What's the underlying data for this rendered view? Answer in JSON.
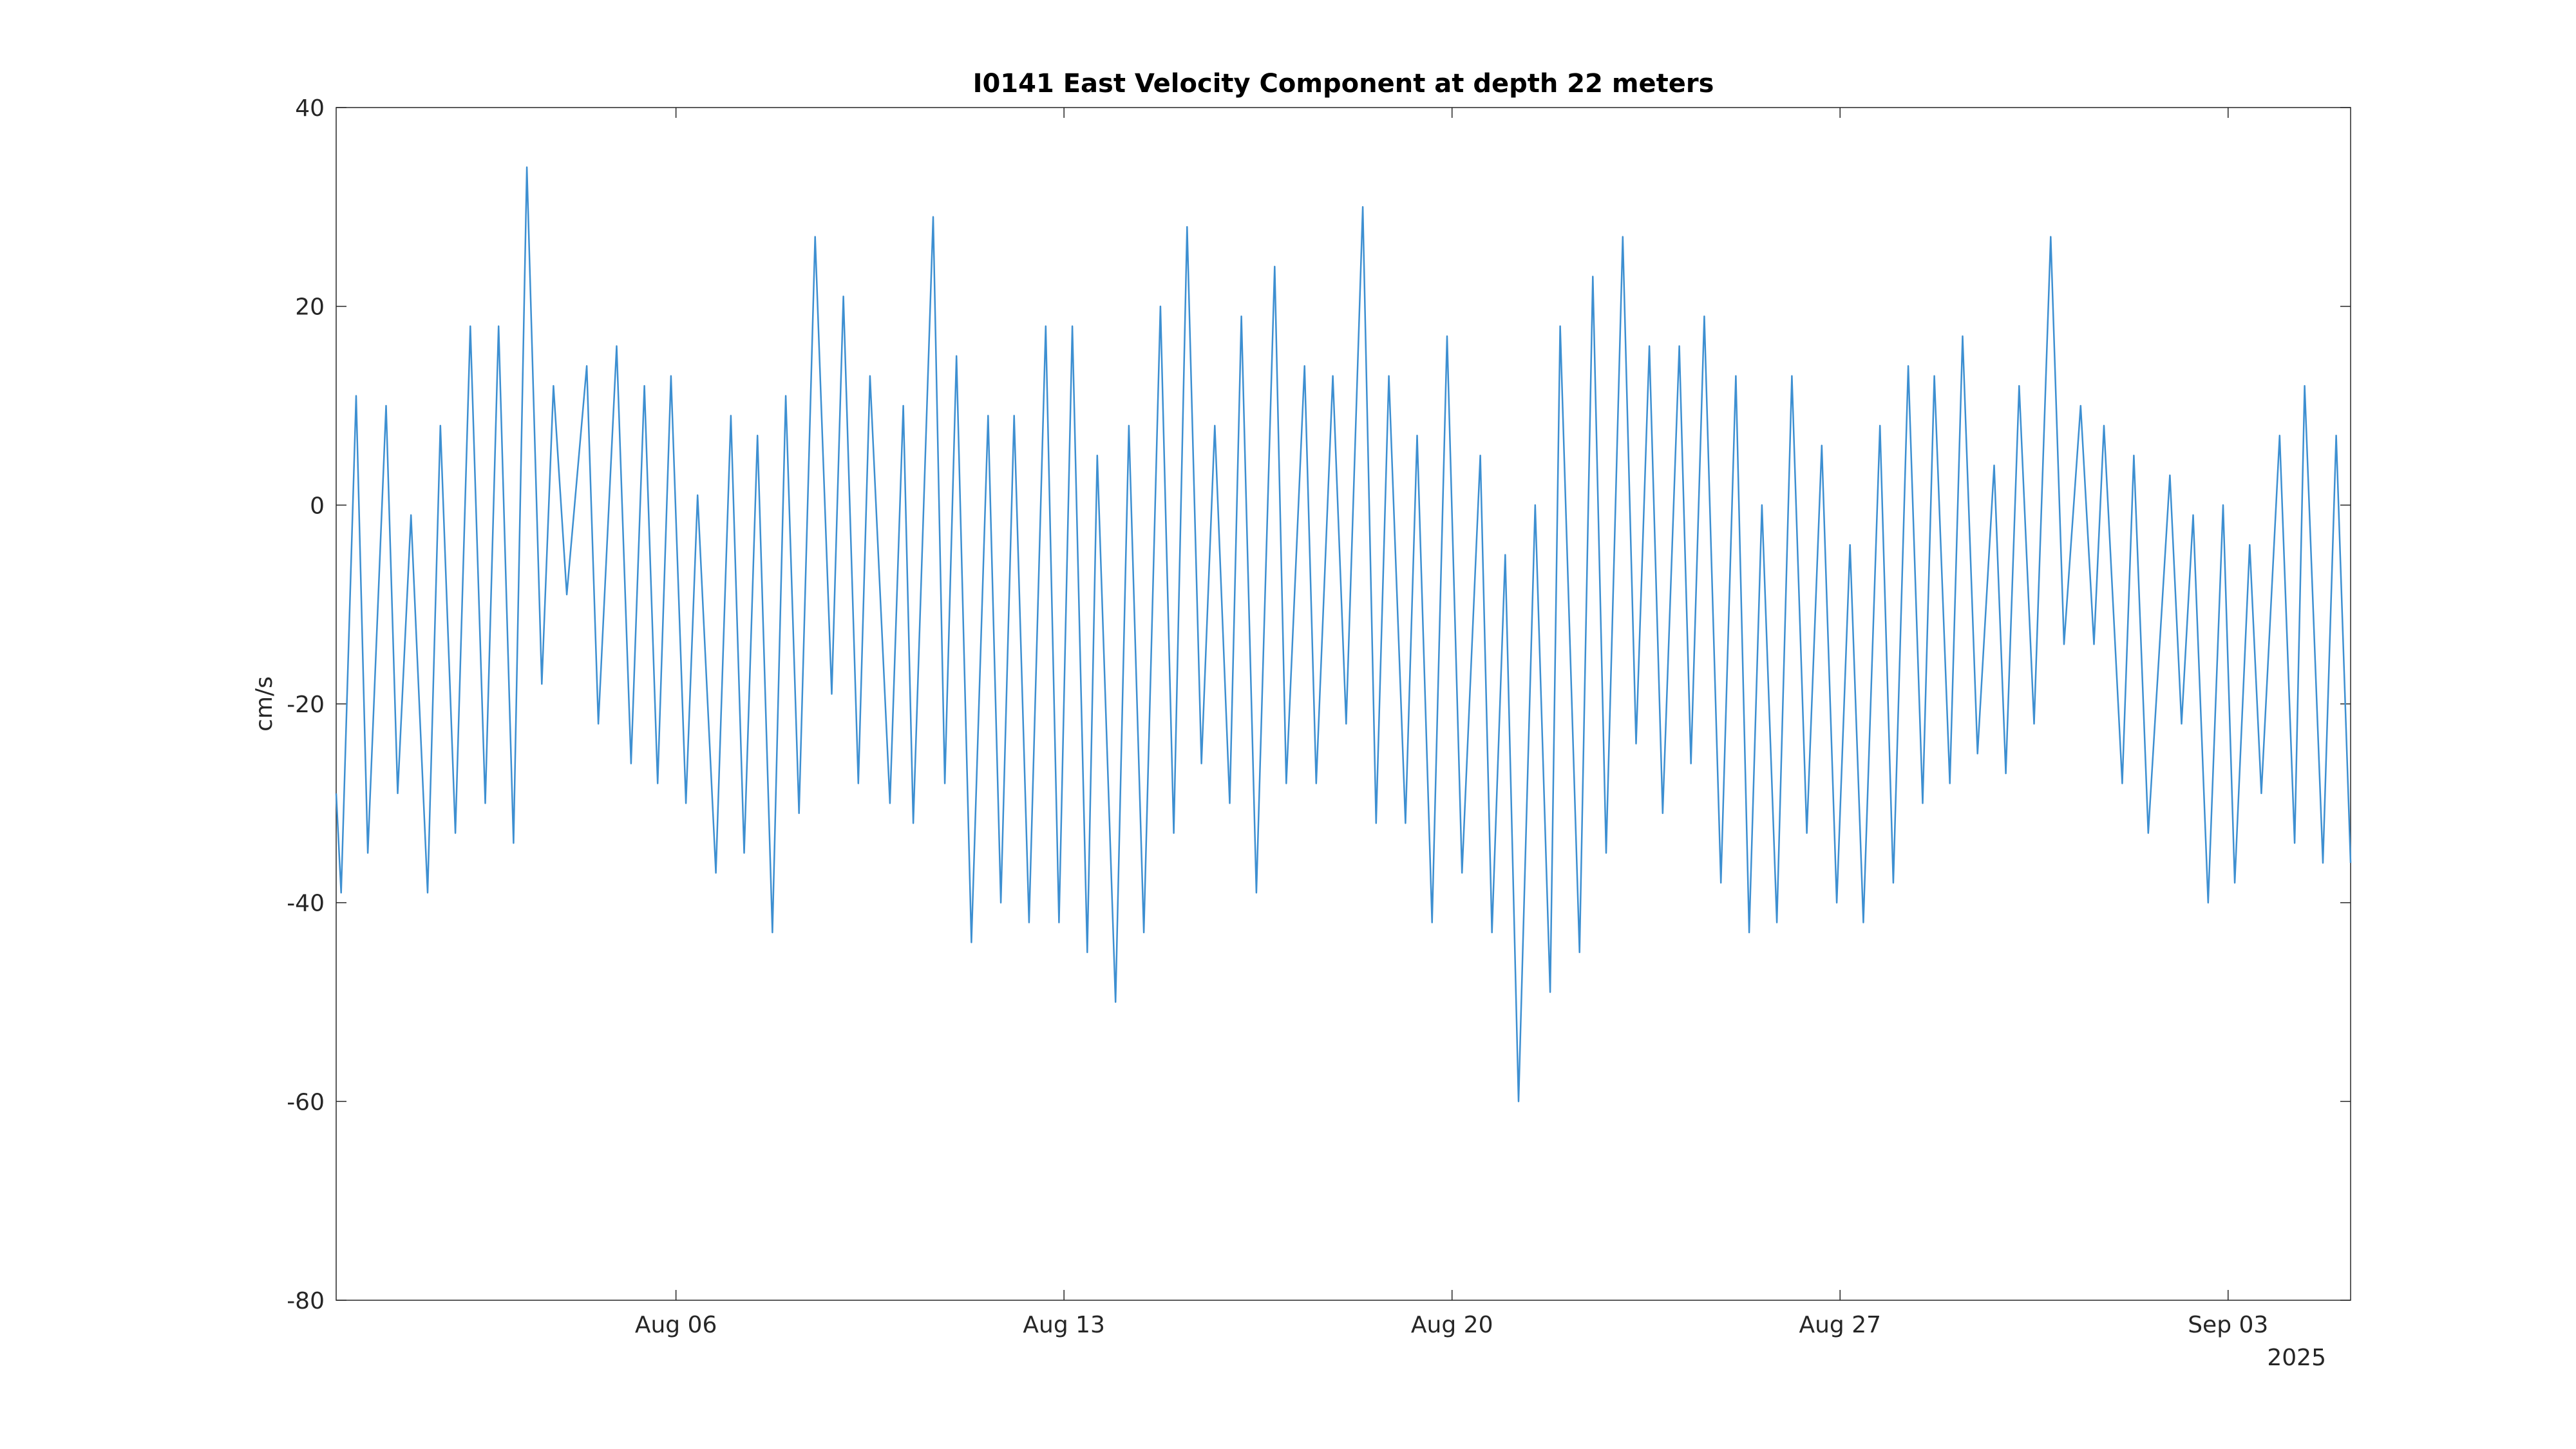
{
  "chart_data": {
    "type": "line",
    "title": "I0141 East Velocity Component at depth 22 meters",
    "ylabel": "cm/s",
    "x_secondary_label": "2025",
    "xlim": [
      -0.13,
      36.21
    ],
    "xticks": [
      {
        "value": 6,
        "label": "Aug 06"
      },
      {
        "value": 13,
        "label": "Aug 13"
      },
      {
        "value": 20,
        "label": "Aug 20"
      },
      {
        "value": 27,
        "label": "Aug 27"
      },
      {
        "value": 34,
        "label": "Sep 03"
      }
    ],
    "ylim": [
      -80,
      40
    ],
    "yticks": [
      -80,
      -60,
      -40,
      -20,
      0,
      20,
      40
    ],
    "grid": false,
    "series": [
      {
        "name": "East Velocity",
        "color": "#3d8fd1",
        "x": [
          -0.13,
          -0.04,
          0.23,
          0.44,
          0.77,
          0.98,
          1.22,
          1.52,
          1.75,
          2.02,
          2.29,
          2.56,
          2.8,
          3.07,
          3.31,
          3.58,
          3.79,
          4.03,
          4.39,
          4.6,
          4.93,
          5.19,
          5.43,
          5.67,
          5.91,
          6.18,
          6.39,
          6.72,
          6.99,
          7.23,
          7.47,
          7.74,
          7.98,
          8.22,
          8.51,
          8.81,
          9.02,
          9.29,
          9.5,
          9.86,
          10.1,
          10.28,
          10.64,
          10.85,
          11.06,
          11.33,
          11.63,
          11.86,
          12.1,
          12.37,
          12.67,
          12.91,
          13.15,
          13.42,
          13.6,
          13.93,
          14.17,
          14.44,
          14.74,
          14.98,
          15.22,
          15.48,
          15.72,
          15.99,
          16.2,
          16.47,
          16.8,
          17.01,
          17.34,
          17.55,
          17.85,
          18.09,
          18.39,
          18.63,
          18.86,
          19.16,
          19.37,
          19.64,
          19.91,
          20.18,
          20.51,
          20.72,
          20.96,
          21.2,
          21.5,
          21.77,
          21.95,
          22.3,
          22.54,
          22.78,
          23.08,
          23.32,
          23.56,
          23.8,
          24.1,
          24.31,
          24.55,
          24.85,
          25.12,
          25.36,
          25.59,
          25.86,
          26.13,
          26.4,
          26.67,
          26.94,
          27.18,
          27.42,
          27.72,
          27.96,
          28.23,
          28.49,
          28.7,
          28.98,
          29.21,
          29.48,
          29.78,
          29.99,
          30.23,
          30.5,
          30.8,
          31.04,
          31.34,
          31.58,
          31.76,
          32.09,
          32.3,
          32.56,
          32.95,
          33.16,
          33.37,
          33.64,
          33.91,
          34.12,
          34.39,
          34.6,
          34.93,
          35.2,
          35.38,
          35.71,
          35.95,
          36.21
        ],
        "values": [
          -29,
          -39,
          11,
          -35,
          10,
          -29,
          -1,
          -39,
          8,
          -33,
          18,
          -30,
          18,
          -34,
          34,
          -18,
          12,
          -9,
          14,
          -22,
          16,
          -26,
          12,
          -28,
          13,
          -30,
          1,
          -37,
          9,
          -35,
          7,
          -43,
          11,
          -31,
          27,
          -19,
          21,
          -28,
          13,
          -30,
          10,
          -32,
          29,
          -28,
          15,
          -44,
          9,
          -40,
          9,
          -42,
          18,
          -42,
          18,
          -45,
          5,
          -50,
          8,
          -43,
          20,
          -33,
          28,
          -26,
          8,
          -30,
          19,
          -39,
          24,
          -28,
          14,
          -28,
          13,
          -22,
          30,
          -32,
          13,
          -32,
          7,
          -42,
          17,
          -37,
          5,
          -43,
          -5,
          -60,
          0,
          -49,
          18,
          -45,
          23,
          -35,
          27,
          -24,
          16,
          -31,
          16,
          -26,
          19,
          -38,
          13,
          -43,
          0,
          -42,
          13,
          -33,
          6,
          -40,
          -4,
          -42,
          8,
          -38,
          14,
          -30,
          13,
          -28,
          17,
          -25,
          4,
          -27,
          12,
          -22,
          27,
          -14,
          10,
          -14,
          8,
          -28,
          5,
          -33,
          3,
          -22,
          -1,
          -40,
          0,
          -38,
          -4,
          -29,
          7,
          -34,
          12,
          -36,
          7,
          -36
        ]
      }
    ]
  }
}
